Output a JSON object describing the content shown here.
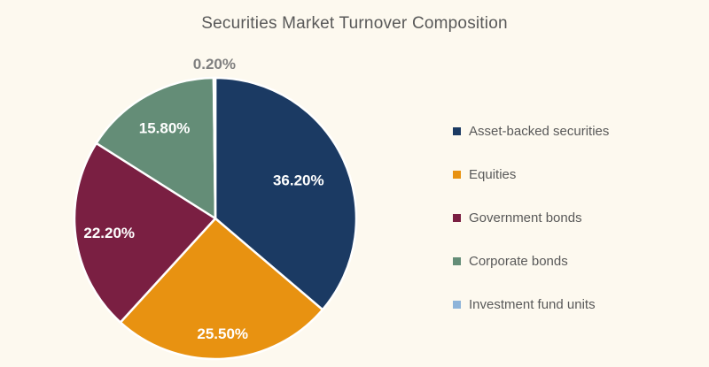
{
  "background": "#FDF9EF",
  "title": "Securities Market Turnover Composition",
  "chart_data": {
    "type": "pie",
    "title": "Securities Market Turnover Composition",
    "categories": [
      "Asset-backed securities",
      "Equities",
      "Government bonds",
      "Corporate bonds",
      "Investment fund units"
    ],
    "values": [
      36.2,
      25.5,
      22.2,
      15.8,
      0.2
    ],
    "data_labels": [
      "36.20%",
      "25.50%",
      "22.20%",
      "15.80%",
      "0.20%"
    ],
    "colors": [
      "#1B3A63",
      "#E89211",
      "#7A1F42",
      "#648D77",
      "#8EB4D9"
    ],
    "start_angle_deg": 0,
    "direction": "clockwise",
    "slice_border_color": "#FFFFFF",
    "inside_label_color": "#FFFFFF",
    "outside_label_color": "#7F7F7F",
    "title_color": "#595959",
    "legend_text_color": "#595959",
    "legend_position": "right",
    "grid": "off"
  }
}
